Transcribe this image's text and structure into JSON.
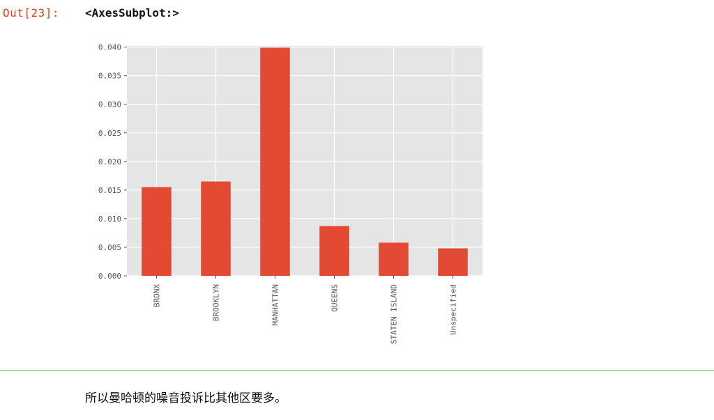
{
  "cell": {
    "out_prompt": "Out[23]:",
    "out_repr": "<AxesSubplot:>"
  },
  "chart_data": {
    "type": "bar",
    "categories": [
      "BRONX",
      "BROOKLYN",
      "MANHATTAN",
      "QUEENS",
      "STATEN ISLAND",
      "Unspecified"
    ],
    "values": [
      0.0155,
      0.0165,
      0.0399,
      0.0087,
      0.0058,
      0.0048
    ],
    "yticks": [
      "0.000",
      "0.005",
      "0.010",
      "0.015",
      "0.020",
      "0.025",
      "0.030",
      "0.035",
      "0.040"
    ],
    "ylim": [
      0,
      0.0402
    ],
    "grid": true,
    "legend": "none",
    "colors": {
      "bar": "#e24a33",
      "axes_bg": "#e5e5e5",
      "grid": "#ffffff",
      "tick_text": "#555555"
    }
  },
  "markdown": {
    "text": "所以曼哈顿的噪音投诉比其他区要多。"
  }
}
